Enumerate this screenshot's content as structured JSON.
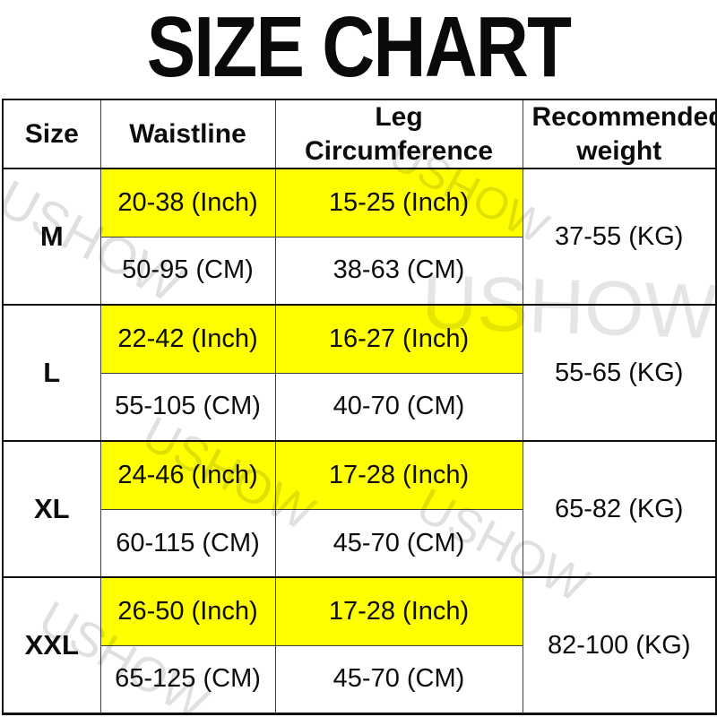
{
  "title": "SIZE CHART",
  "watermark": {
    "text": "USHOW"
  },
  "table": {
    "highlight_color": "#ffff00",
    "headers": [
      "Size",
      "Waistline",
      "Leg Circumference",
      "Recommended weight"
    ],
    "rows": [
      {
        "size": "M",
        "waistline_inch": "20-38 (Inch)",
        "leg_inch": "15-25 (Inch)",
        "waistline_cm": "50-95 (CM)",
        "leg_cm": "38-63 (CM)",
        "weight": "37-55 (KG)"
      },
      {
        "size": "L",
        "waistline_inch": "22-42 (Inch)",
        "leg_inch": "16-27 (Inch)",
        "waistline_cm": "55-105 (CM)",
        "leg_cm": "40-70 (CM)",
        "weight": "55-65 (KG)"
      },
      {
        "size": "XL",
        "waistline_inch": "24-46 (Inch)",
        "leg_inch": "17-28 (Inch)",
        "waistline_cm": "60-115 (CM)",
        "leg_cm": "45-70 (CM)",
        "weight": "65-82 (KG)"
      },
      {
        "size": "XXL",
        "waistline_inch": "26-50 (Inch)",
        "leg_inch": "17-28 (Inch)",
        "waistline_cm": "65-125 (CM)",
        "leg_cm": "45-70 (CM)",
        "weight": "82-100 (KG)"
      }
    ]
  },
  "chart_data": {
    "type": "table",
    "title": "SIZE CHART",
    "columns": [
      "Size",
      "Waistline",
      "Leg Circumference",
      "Recommended weight"
    ],
    "rows": [
      [
        "M",
        "20-38 (Inch) / 50-95 (CM)",
        "15-25 (Inch) / 38-63 (CM)",
        "37-55 (KG)"
      ],
      [
        "L",
        "22-42 (Inch) / 55-105 (CM)",
        "16-27 (Inch) / 40-70 (CM)",
        "55-65 (KG)"
      ],
      [
        "XL",
        "24-46 (Inch) / 60-115 (CM)",
        "17-28 (Inch) / 45-70 (CM)",
        "65-82 (KG)"
      ],
      [
        "XXL",
        "26-50 (Inch) / 65-125 (CM)",
        "17-28 (Inch) / 45-70 (CM)",
        "82-100 (KG)"
      ]
    ],
    "layout_hints": {
      "inch_rows_highlighted": true,
      "highlight_color": "#ffff00",
      "size_and_weight_cells_span_two_subrows": true,
      "watermark_text": "USHOW"
    }
  }
}
